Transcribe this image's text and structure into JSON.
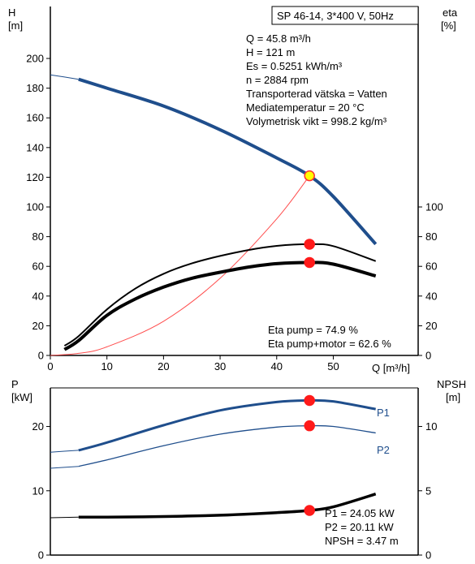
{
  "chart_data": [
    {
      "type": "line",
      "title": "SP 46-14, 3*400 V, 50Hz",
      "xlabel": "Q [m³/h]",
      "ylabel_left": [
        "H",
        "[m]"
      ],
      "ylabel_right": [
        "eta",
        "[%]"
      ],
      "xlim": [
        0,
        65
      ],
      "ylim_left": [
        0,
        235
      ],
      "ylim_right": [
        0,
        235
      ],
      "x_ticks": [
        "0",
        "10",
        "20",
        "30",
        "40",
        "50"
      ],
      "y_ticks_left": [
        "0",
        "20",
        "40",
        "60",
        "80",
        "100",
        "120",
        "140",
        "160",
        "180",
        "200"
      ],
      "y_ticks_right": [
        "0",
        "20",
        "40",
        "60",
        "80",
        "100"
      ],
      "grid": false,
      "info": [
        "Q = 45.8 m³/h",
        "H = 121 m",
        "Es = 0.5251 kWh/m³",
        "n = 2884 rpm",
        "Transporterad vätska = Vatten",
        "Mediatemperatur = 20 °C",
        "Volymetrisk vikt = 998.2 kg/m³"
      ],
      "annotations": [
        "Eta pump = 74.9 %",
        "Eta pump+motor = 62.6 %"
      ],
      "series": [
        {
          "key": "head_ext",
          "x": [
            0,
            5
          ],
          "y": [
            189,
            186
          ],
          "color": "#1f4e8c",
          "width": 1
        },
        {
          "key": "head",
          "x": [
            5,
            10,
            20,
            30,
            40,
            45.8,
            50,
            57.5
          ],
          "y": [
            186,
            180,
            168,
            152,
            133,
            121,
            107,
            75
          ],
          "color": "#1f4e8c",
          "width": 4
        },
        {
          "key": "system",
          "x": [
            0,
            5,
            10,
            20,
            30,
            40,
            45.8
          ],
          "y": [
            0,
            1.4,
            5.8,
            23,
            52,
            92,
            121
          ],
          "color": "#ff4d4d",
          "width": 1
        },
        {
          "key": "eta_pump",
          "x": [
            2.5,
            5,
            10,
            15,
            20,
            25,
            30,
            35,
            40,
            45.8,
            50,
            57.5
          ],
          "y": [
            6.5,
            13,
            31,
            45,
            55,
            62,
            67,
            71,
            73.8,
            74.9,
            73.6,
            63.5
          ],
          "color": "#000000",
          "width": 2
        },
        {
          "key": "eta_total",
          "x": [
            2.5,
            5,
            10,
            15,
            20,
            25,
            30,
            35,
            40,
            45.8,
            50,
            57.5
          ],
          "y": [
            4,
            10,
            27,
            38,
            46,
            52,
            56,
            59.5,
            61.8,
            62.6,
            61.5,
            53.5
          ],
          "color": "#000000",
          "width": 4
        }
      ],
      "markers": [
        {
          "x": 45.8,
          "y": 121,
          "fill": "#ffff00",
          "stroke": "#ff3030"
        },
        {
          "x": 45.8,
          "y": 74.9,
          "fill": "#ff1a1a",
          "stroke": "#ff1a1a"
        },
        {
          "x": 45.8,
          "y": 62.6,
          "fill": "#ff1a1a",
          "stroke": "#ff1a1a"
        }
      ]
    },
    {
      "type": "line",
      "xlabel": "",
      "ylabel_left": [
        "P",
        "[kW]"
      ],
      "ylabel_right": [
        "NPSH",
        "[m]"
      ],
      "xlim": [
        0,
        65
      ],
      "ylim_left": [
        0,
        26
      ],
      "ylim_right": [
        0,
        13
      ],
      "y_ticks_left": [
        "0",
        "10",
        "20"
      ],
      "y_ticks_right": [
        "0",
        "5",
        "10"
      ],
      "grid": false,
      "annotations": [
        "P1 = 24.05 kW",
        "P2 = 20.11 kW",
        "NPSH = 3.47 m"
      ],
      "series": [
        {
          "key": "p1_ext",
          "axis": "left",
          "x": [
            0,
            5
          ],
          "y": [
            16,
            16.3
          ],
          "color": "#1f4e8c",
          "width": 1
        },
        {
          "key": "p1",
          "name": "P1",
          "axis": "left",
          "x": [
            5,
            10,
            20,
            30,
            40,
            45.8,
            50,
            57.5
          ],
          "y": [
            16.3,
            17.5,
            20.2,
            22.5,
            23.8,
            24.05,
            23.9,
            22.7
          ],
          "color": "#1f4e8c",
          "width": 3
        },
        {
          "key": "p2_ext",
          "axis": "left",
          "x": [
            0,
            5
          ],
          "y": [
            13.5,
            13.8
          ],
          "color": "#1f4e8c",
          "width": 1
        },
        {
          "key": "p2",
          "name": "P2",
          "axis": "left",
          "x": [
            5,
            10,
            20,
            30,
            40,
            45.8,
            50,
            57.5
          ],
          "y": [
            13.8,
            14.8,
            17,
            18.8,
            19.9,
            20.11,
            20,
            19
          ],
          "color": "#1f4e8c",
          "width": 1.3
        },
        {
          "key": "npsh_ext",
          "axis": "right",
          "x": [
            0,
            5
          ],
          "y": [
            2.9,
            2.95
          ],
          "color": "#000000",
          "width": 1
        },
        {
          "key": "npsh",
          "axis": "right",
          "x": [
            5,
            10,
            20,
            30,
            40,
            45.8,
            50,
            57.5
          ],
          "y": [
            2.95,
            2.95,
            3.0,
            3.1,
            3.3,
            3.47,
            3.75,
            4.75
          ],
          "color": "#000000",
          "width": 3.5
        }
      ],
      "markers": [
        {
          "x": 45.8,
          "y": 24.05,
          "axis": "left",
          "fill": "#ff1a1a",
          "stroke": "#ff1a1a"
        },
        {
          "x": 45.8,
          "y": 20.11,
          "axis": "left",
          "fill": "#ff1a1a",
          "stroke": "#ff1a1a"
        },
        {
          "x": 45.8,
          "y": 3.47,
          "axis": "right",
          "fill": "#ff1a1a",
          "stroke": "#ff1a1a"
        }
      ]
    }
  ]
}
